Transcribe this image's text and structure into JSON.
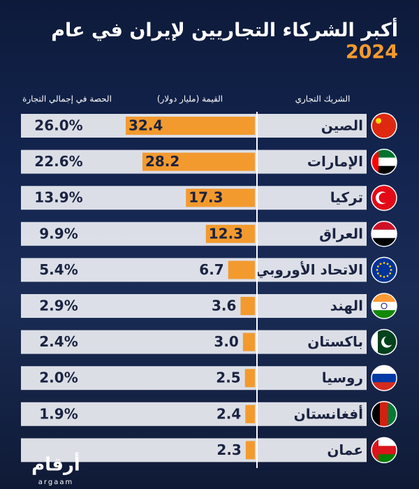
{
  "chart_data": {
    "type": "bar",
    "title": "أكبر الشركاء التجاريين لإيران في عام",
    "title_year": "2024",
    "column_headers": [
      "الشريك التجاري",
      "القيمة (مليار دولار)",
      "الحصة في إجمالي التجارة"
    ],
    "categories": [
      "الصين",
      "الإمارات",
      "تركيا",
      "العراق",
      "الاتحاد الأوروبي",
      "الهند",
      "باكستان",
      "روسيا",
      "أفغانستان",
      "عمان"
    ],
    "values": [
      32.4,
      28.2,
      17.3,
      12.3,
      6.7,
      3.6,
      3.0,
      2.5,
      2.4,
      2.3
    ],
    "value_labels": [
      "32.4",
      "28.2",
      "17.3",
      "12.3",
      "6.7",
      "3.6",
      "3.0",
      "2.5",
      "2.4",
      "2.3"
    ],
    "color": "#f39a2e",
    "share": {
      "values": [
        26.0,
        22.6,
        13.9,
        9.9,
        5.4,
        2.9,
        2.4,
        2.0,
        1.9,
        null
      ],
      "value_labels": [
        "26.0%",
        "22.6%",
        "13.9%",
        "9.9%",
        "5.4%",
        "2.9%",
        "2.4%",
        "2.0%",
        "1.9%",
        null
      ]
    },
    "brand": {
      "name": "أرقام",
      "latin": "argaam"
    }
  }
}
